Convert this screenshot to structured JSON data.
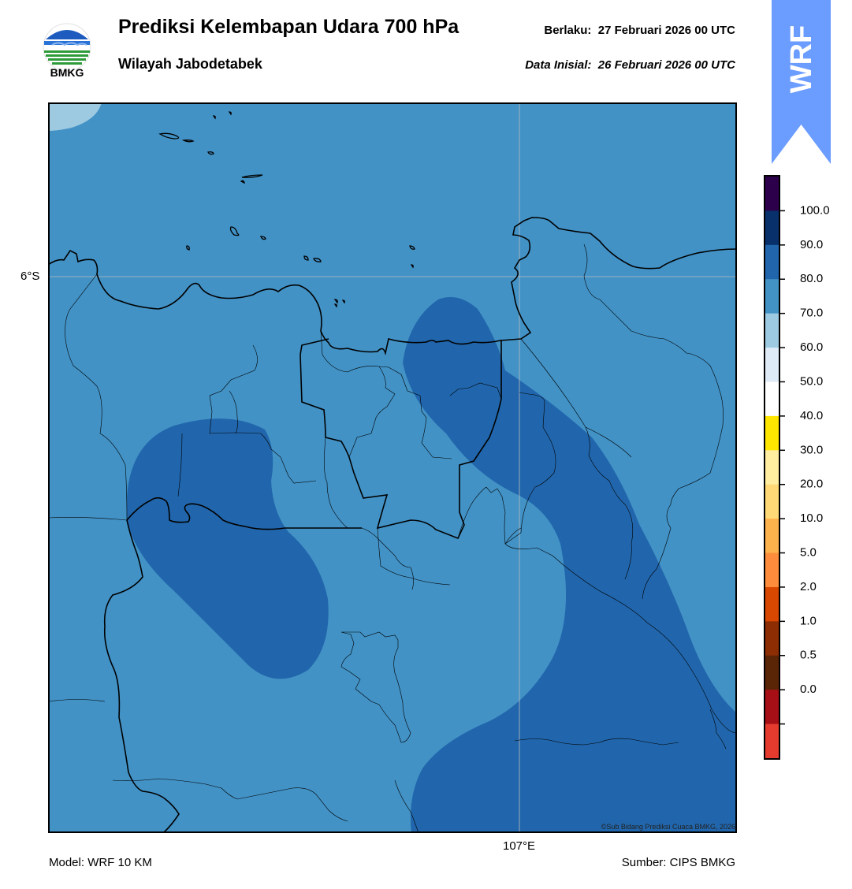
{
  "header": {
    "logo_text": "BMKG",
    "title": "Prediksi Kelembapan Udara 700 hPa",
    "subtitle": "Wilayah Jabodetabek",
    "valid_label": "Berlaku:",
    "valid_time": "27 Februari 2026 00 UTC",
    "init_label": "Data Inisial:",
    "init_time": "26 Februari 2026 00 UTC"
  },
  "badge": {
    "text": "WRF",
    "color": "#6b9cff"
  },
  "map": {
    "lat_label": "6°S",
    "lon_label": "107°E",
    "credit": "©Sub Bidang Prediksi Cuaca BMKG, 2026",
    "fill_colors": {
      "70-80": "#4292c6",
      "80-90": "#2166ac",
      "60-70": "#9ecae1"
    }
  },
  "colorbar": {
    "levels": [
      {
        "label": "100.0",
        "color": "#2d004b"
      },
      {
        "label": "90.0",
        "color": "#08306b"
      },
      {
        "label": "80.0",
        "color": "#2166ac"
      },
      {
        "label": "70.0",
        "color": "#4292c6"
      },
      {
        "label": "60.0",
        "color": "#9ecae1"
      },
      {
        "label": "50.0",
        "color": "#deebf7"
      },
      {
        "label": "40.0",
        "color": "#ffffff"
      },
      {
        "label": "30.0",
        "color": "#ffe600"
      },
      {
        "label": "20.0",
        "color": "#ffeda0"
      },
      {
        "label": "10.0",
        "color": "#fed976"
      },
      {
        "label": "5.0",
        "color": "#feb24c"
      },
      {
        "label": "2.0",
        "color": "#fd8d3c"
      },
      {
        "label": "1.0",
        "color": "#d94801"
      },
      {
        "label": "0.5",
        "color": "#8c2d04"
      },
      {
        "label": "0.0",
        "color": "#5a2506"
      },
      {
        "label": "",
        "color": "#a50f15"
      },
      {
        "label": "",
        "color": "#e53b2f"
      }
    ]
  },
  "footer": {
    "model": "Model: WRF 10 KM",
    "source": "Sumber: CIPS BMKG"
  }
}
